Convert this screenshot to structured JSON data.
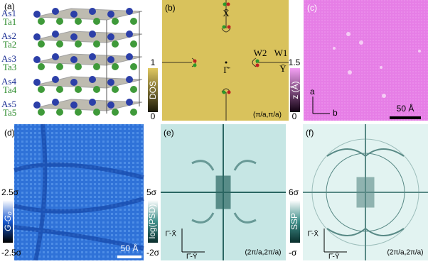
{
  "panels": [
    {
      "label": "(a)",
      "layers": [
        {
          "as": "As1",
          "ta": "Ta1"
        },
        {
          "as": "As2",
          "ta": "Ta2"
        },
        {
          "as": "As3",
          "ta": "Ta3"
        },
        {
          "as": "As4",
          "ta": "Ta4"
        },
        {
          "as": "As5",
          "ta": "Ta5"
        }
      ]
    },
    {
      "label": "(b)",
      "x_point": "X̄",
      "gamma": "Γ̄",
      "w2": "W2",
      "w1": "W1",
      "y_point": "Ȳ",
      "corner": "(π/a,π/a)",
      "colorbar": {
        "label": "DOS",
        "max": "1",
        "min": "0"
      }
    },
    {
      "label": "(c)",
      "axis_a": "a",
      "axis_b": "b",
      "scale": "50 Å",
      "colorbar": {
        "label": "z (Å)",
        "max": "1.5",
        "min": "0"
      }
    },
    {
      "label": "(d)",
      "scale": "50 Å",
      "colorbar": {
        "label": "G-G₀",
        "max": "2.5σ",
        "min": "-2.5σ"
      }
    },
    {
      "label": "(e)",
      "vertical_axis": "Γ̄-X̄",
      "horizontal_axis": "Γ̄-Ȳ",
      "corner": "(2π/a,2π/a)",
      "colorbar": {
        "label": "log(PSD)",
        "max": "5σ",
        "min": "-2σ"
      }
    },
    {
      "label": "(f)",
      "vertical_axis": "Γ̄-X̄",
      "horizontal_axis": "Γ̄-Ȳ",
      "corner": "(2π/a,2π/a)",
      "colorbar": {
        "label": "SSP",
        "max": "6σ",
        "min": "-σ"
      }
    }
  ]
}
